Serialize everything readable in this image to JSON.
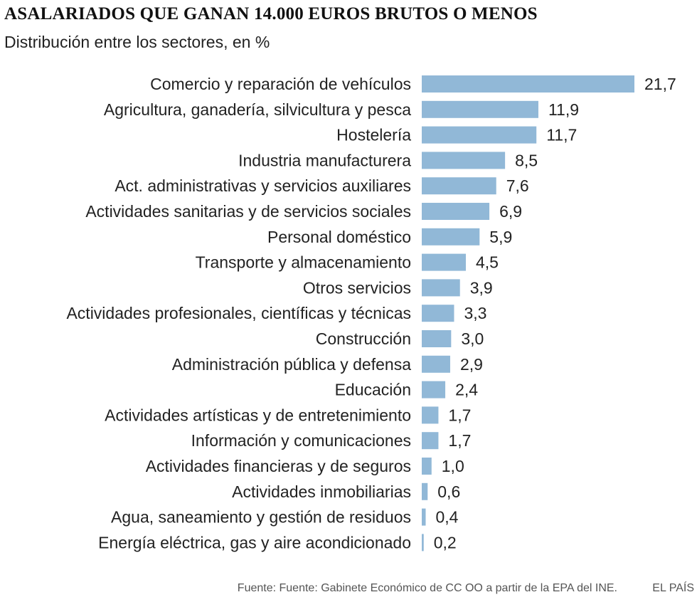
{
  "chart_data": {
    "type": "bar",
    "orientation": "horizontal",
    "title": "ASALARIADOS QUE GANAN 14.000 EUROS BRUTOS O MENOS",
    "subtitle": "Distribución entre los sectores, en %",
    "categories": [
      "Comercio y reparación de vehículos",
      "Agricultura, ganadería, silvicultura y pesca",
      "Hostelería",
      "Industria manufacturera",
      "Act. administrativas y servicios auxiliares",
      "Actividades sanitarias y de servicios sociales",
      "Personal doméstico",
      "Transporte y almacenamiento",
      "Otros servicios",
      "Actividades profesionales, científicas y técnicas",
      "Construcción",
      "Administración pública y defensa",
      "Educación",
      "Actividades artísticas y de entretenimiento",
      "Información y comunicaciones",
      "Actividades financieras y de seguros",
      "Actividades inmobiliarias",
      "Agua, saneamiento y gestión de residuos",
      "Energía eléctrica, gas y aire acondicionado"
    ],
    "values": [
      21.7,
      11.9,
      11.7,
      8.5,
      7.6,
      6.9,
      5.9,
      4.5,
      3.9,
      3.3,
      3.0,
      2.9,
      2.4,
      1.7,
      1.7,
      1.0,
      0.6,
      0.4,
      0.2
    ],
    "value_labels": [
      "21,7",
      "11,9",
      "11,7",
      "8,5",
      "7,6",
      "6,9",
      "5,9",
      "4,5",
      "3,9",
      "3,3",
      "3,0",
      "2,9",
      "2,4",
      "1,7",
      "1,7",
      "1,0",
      "0,6",
      "0,4",
      "0,2"
    ],
    "xlim": [
      0,
      21.7
    ],
    "grid": false,
    "bar_color": "#91b8d7"
  },
  "footer": {
    "source": "Fuente: Fuente: Gabinete Económico de CC OO a partir de la EPA del INE.",
    "brand": "EL PAÍS"
  }
}
